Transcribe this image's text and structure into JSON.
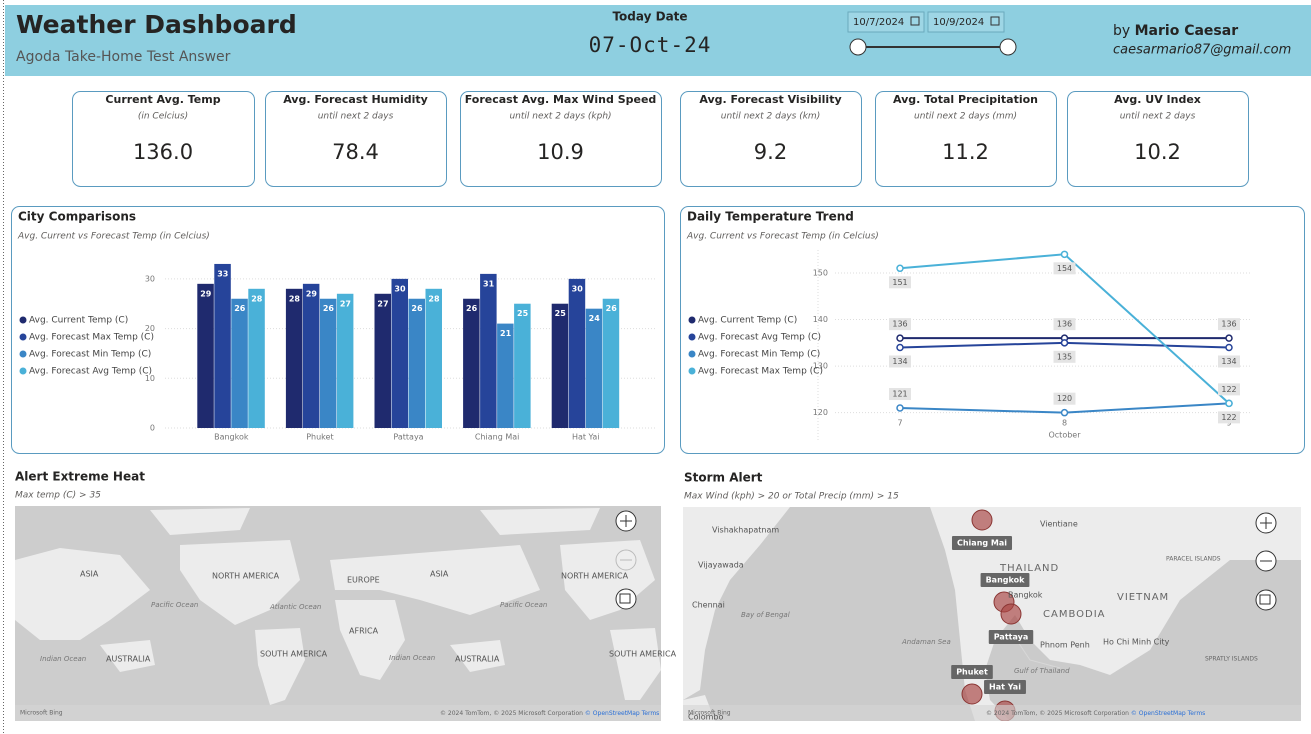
{
  "header": {
    "title": "Weather Dashboard",
    "subtitle": "Agoda Take-Home Test Answer",
    "today_label": "Today Date",
    "today_value": "07-Oct-24",
    "date_start": "10/7/2024",
    "date_end": "10/9/2024",
    "author_prefix": "by",
    "author_name": "Mario Caesar",
    "author_email": "caesarmario87@gmail.com"
  },
  "kpis": [
    {
      "title": "Current Avg. Temp",
      "subtitle": "(in Celcius)",
      "value": "136.0"
    },
    {
      "title": "Avg. Forecast Humidity",
      "subtitle": "until next 2 days",
      "value": "78.4"
    },
    {
      "title": "Forecast Avg. Max Wind Speed",
      "subtitle": "until next 2 days (kph)",
      "value": "10.9"
    },
    {
      "title": "Avg. Forecast Visibility",
      "subtitle": "until next 2 days (km)",
      "value": "9.2"
    },
    {
      "title": "Avg. Total Precipitation",
      "subtitle": "until next 2 days (mm)",
      "value": "11.2"
    },
    {
      "title": "Avg. UV Index",
      "subtitle": "until next 2 days",
      "value": "10.2"
    }
  ],
  "chart_data": [
    {
      "type": "bar",
      "title": "City Comparisons",
      "subtitle": "Avg. Current vs Forecast Temp (in Celcius)",
      "categories": [
        "Bangkok",
        "Phuket",
        "Pattaya",
        "Chiang Mai",
        "Hat Yai"
      ],
      "series": [
        {
          "name": "Avg. Current Temp (C)",
          "color": "#1f2a6e",
          "values": [
            29,
            28,
            27,
            26,
            25
          ]
        },
        {
          "name": "Avg. Forecast Max Temp (C)",
          "color": "#26449a",
          "values": [
            33,
            29,
            30,
            31,
            30
          ]
        },
        {
          "name": "Avg. Forecast Min Temp (C)",
          "color": "#3a86c6",
          "values": [
            26,
            26,
            26,
            21,
            24
          ]
        },
        {
          "name": "Avg. Forecast Avg Temp (C)",
          "color": "#4ab1d8",
          "values": [
            28,
            27,
            28,
            25,
            26
          ]
        }
      ],
      "ylim": [
        0,
        35
      ],
      "yticks": [
        0,
        10,
        20,
        30
      ],
      "grid": true,
      "legend": "left"
    },
    {
      "type": "line",
      "title": "Daily Temperature Trend",
      "subtitle": "Avg. Current vs Forecast Temp (in Celcius)",
      "categories": [
        "7",
        "8",
        "9"
      ],
      "x_label": "October",
      "series": [
        {
          "name": "Avg. Current Temp (C)",
          "color": "#1f2a6e",
          "values": [
            136,
            136,
            136
          ]
        },
        {
          "name": "Avg. Forecast Avg Temp (C)",
          "color": "#26449a",
          "values": [
            134,
            135,
            134
          ]
        },
        {
          "name": "Avg. Forecast Min Temp (C)",
          "color": "#3a86c6",
          "values": [
            121,
            120,
            122
          ]
        },
        {
          "name": "Avg. Forecast Max Temp (C)",
          "color": "#4ab1d8",
          "values": [
            151,
            154,
            122
          ]
        }
      ],
      "ylim": [
        118,
        156
      ],
      "yticks": [
        120,
        130,
        140,
        150
      ],
      "grid": true,
      "legend": "left"
    }
  ],
  "maps": [
    {
      "title": "Alert Extreme Heat",
      "subtitle": "Max temp (C) > 35",
      "labels": [
        "ASIA",
        "NORTH AMERICA",
        "EUROPE",
        "ASIA",
        "NORTH AMERICA",
        "Pacific Ocean",
        "Atlantic Ocean",
        "Pacific Ocean",
        "AFRICA",
        "Indian Ocean",
        "AUSTRALIA",
        "SOUTH AMERICA",
        "Indian Ocean",
        "AUSTRALIA",
        "SOUTH AMERICA"
      ],
      "credit": "Microsoft Bing",
      "attribution": "© 2024 TomTom, © 2025 Microsoft Corporation",
      "osm": "© OpenStreetMap",
      "terms": "Terms"
    },
    {
      "title": "Storm Alert",
      "subtitle": "Max Wind (kph) > 20 or Total Precip (mm) > 15",
      "labels": [
        "Vishakhapatnam",
        "Vientiane",
        "Vijayawada",
        "THAILAND",
        "Bangkok",
        "Chennai",
        "Bay of Bengal",
        "CAMBODIA",
        "VIETNAM",
        "Andaman Sea",
        "Phnom Penh",
        "Ho Chi Minh City",
        "Gulf of Thailand",
        "PARACEL ISLANDS",
        "SPRATLY ISLANDS",
        "Colombo"
      ],
      "cities": [
        "Chiang Mai",
        "Bangkok",
        "Pattaya",
        "Phuket",
        "Hat Yai"
      ],
      "credit": "Microsoft Bing",
      "attribution": "© 2024 TomTom, © 2025 Microsoft Corporation",
      "osm": "© OpenStreetMap",
      "terms": "Terms"
    }
  ]
}
